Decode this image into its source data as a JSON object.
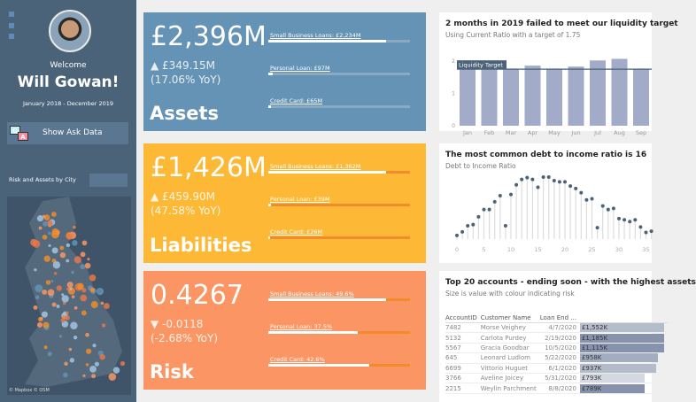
{
  "sidebar": {
    "welcome": "Welcome",
    "name": "Will Gowan!",
    "date_range": "January 2018 - December 2019",
    "ask_button": "Show Ask Data",
    "ask_icon_q": "Q",
    "ask_icon_a": "A",
    "map_title": "Risk and Assets by City",
    "map_credit": "© Mapbox © OSM"
  },
  "kpis": [
    {
      "title": "Assets",
      "value": "£2,396M",
      "change": "▲ £349.15M",
      "yoy": "(17.06% YoY)",
      "color": "#6493b5",
      "track": "#8aaac4",
      "bars": [
        {
          "label": "Small Business Loans: £2,234M",
          "pct": 0.83
        },
        {
          "label": "Personal Loan: £97M",
          "pct": 0.03
        },
        {
          "label": "Credit Card: £65M",
          "pct": 0.02
        }
      ]
    },
    {
      "title": "Liabilities",
      "value": "£1,426M",
      "change": "▲ £459.90M",
      "yoy": "(47.58% YoY)",
      "color": "#fdb936",
      "track": "#f08c2c",
      "bars": [
        {
          "label": "Small Business Loans: £1,362M",
          "pct": 0.83
        },
        {
          "label": "Personal Loan: £39M",
          "pct": 0.02
        },
        {
          "label": "Credit Card: £26M",
          "pct": 0.01
        }
      ]
    },
    {
      "title": "Risk",
      "value": "0.4267",
      "change": "▼ -0.0118",
      "yoy": "(-2.68% YoY)",
      "color": "#fb9664",
      "track": "#f08c2c",
      "bars": [
        {
          "label": "Small Business Loans: 49.6%",
          "pct": 0.83
        },
        {
          "label": "Personal Loan: 37.5%",
          "pct": 0.63
        },
        {
          "label": "Credit Card: 42.6%",
          "pct": 0.71
        }
      ]
    }
  ],
  "chart_data": [
    {
      "type": "bar",
      "title": "2 months in 2019 failed to meet our liquidity target",
      "subtitle": "Using Current Ratio with a target of 1.75",
      "categories": [
        "Jan",
        "Feb",
        "Mar",
        "Apr",
        "May",
        "Jun",
        "Jul",
        "Aug",
        "Sep"
      ],
      "values": [
        1.78,
        1.78,
        1.77,
        1.86,
        1.77,
        1.83,
        2.02,
        2.07,
        1.77
      ],
      "ylim": [
        0,
        2.2
      ],
      "yticks": [
        "0",
        "1",
        "2"
      ],
      "target": 1.75,
      "target_label": "Liquidity Target"
    },
    {
      "type": "scatter",
      "title": "The most common debt to income ratio is 16",
      "subtitle": "Debt to Income Ratio",
      "x": [
        0,
        1,
        2,
        3,
        4,
        5,
        6,
        7,
        8,
        9,
        10,
        11,
        12,
        13,
        14,
        15,
        16,
        17,
        18,
        19,
        20,
        21,
        22,
        23,
        24,
        25,
        26,
        27,
        28,
        29,
        30,
        31,
        32,
        33,
        34,
        35,
        36
      ],
      "values": [
        6,
        12,
        22,
        24,
        37,
        49,
        49,
        62,
        72,
        22,
        74,
        90,
        99,
        102,
        99,
        86,
        103,
        103,
        97,
        95,
        95,
        88,
        84,
        77,
        65,
        67,
        19,
        55,
        49,
        51,
        34,
        32,
        29,
        32,
        20,
        11,
        13
      ],
      "ylim": [
        0,
        110
      ],
      "xticks": [
        "0",
        "5",
        "10",
        "15",
        "20",
        "25",
        "30",
        "35"
      ]
    }
  ],
  "table": {
    "title": "Top 20 accounts - ending soon - with the highest assets",
    "subtitle": "Size is value with colour indicating risk",
    "headers": [
      "AccountID",
      "Customer Name",
      "Loan End ..."
    ],
    "rows": [
      {
        "id": "7482",
        "name": "Morse Veighey",
        "end": "4/7/2020",
        "value": "£1,552K",
        "k": 1552,
        "color": "#b4bccb"
      },
      {
        "id": "5132",
        "name": "Carlota Purdey",
        "end": "2/19/2020",
        "value": "£1,185K",
        "k": 1185,
        "color": "#8792ad"
      },
      {
        "id": "5567",
        "name": "Gracia Goodbar",
        "end": "10/5/2020",
        "value": "£1,115K",
        "k": 1115,
        "color": "#8792ad"
      },
      {
        "id": "645",
        "name": "Leonard Ludlom",
        "end": "5/22/2020",
        "value": "£958K",
        "k": 958,
        "color": "#a3adc1"
      },
      {
        "id": "6699",
        "name": "Vittorio Huguet",
        "end": "6/1/2020",
        "value": "£937K",
        "k": 937,
        "color": "#b4bccb"
      },
      {
        "id": "3766",
        "name": "Aveline Joicey",
        "end": "5/31/2020",
        "value": "£793K",
        "k": 793,
        "color": "#d4d8e1"
      },
      {
        "id": "2215",
        "name": "Weylin Parchment",
        "end": "8/8/2020",
        "value": "£789K",
        "k": 789,
        "color": "#8792ad"
      }
    ]
  }
}
